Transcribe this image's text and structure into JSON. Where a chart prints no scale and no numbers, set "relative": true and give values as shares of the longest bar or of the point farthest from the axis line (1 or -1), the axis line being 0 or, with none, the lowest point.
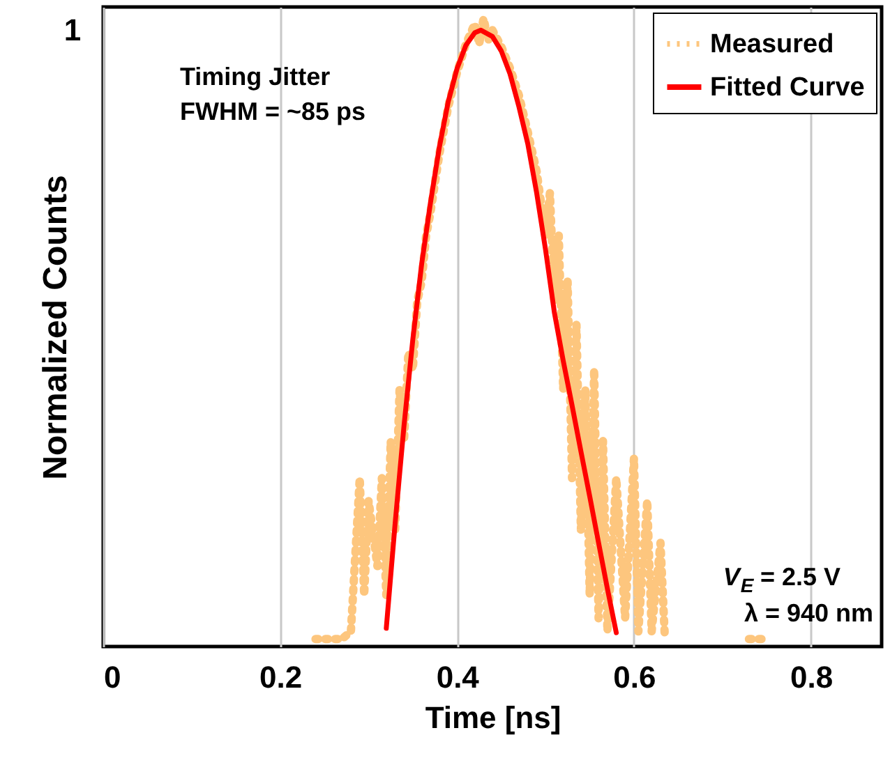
{
  "chart_data": {
    "type": "line",
    "xlabel": "Time [ns]",
    "ylabel": "Normalized Counts",
    "xlim": [
      0,
      0.88
    ],
    "xticks": [
      0,
      0.2,
      0.4,
      0.6,
      0.8
    ],
    "relative": true,
    "grid": "x",
    "legend": "top right",
    "annotations": [
      "1",
      "Timing Jitter",
      "FWHM = ~85 ps",
      "V$_{E}$ = 2.5 V",
      "λ = 940 nm"
    ],
    "series": [
      {
        "name": "Measured",
        "color": "#fdc67e",
        "line_style": "dotted",
        "x": [
          0.24,
          0.27,
          0.28,
          0.29,
          0.295,
          0.3,
          0.31,
          0.315,
          0.32,
          0.325,
          0.33,
          0.335,
          0.34,
          0.345,
          0.35,
          0.355,
          0.36,
          0.365,
          0.37,
          0.38,
          0.39,
          0.4,
          0.41,
          0.42,
          0.425,
          0.43,
          0.435,
          0.44,
          0.45,
          0.46,
          0.47,
          0.48,
          0.49,
          0.5,
          0.505,
          0.51,
          0.515,
          0.52,
          0.525,
          0.53,
          0.535,
          0.54,
          0.545,
          0.55,
          0.555,
          0.56,
          0.565,
          0.57,
          0.58,
          0.59,
          0.6,
          0.605,
          0.615,
          0.62,
          0.63,
          0.635,
          0.7,
          0.73,
          0.75
        ],
        "values": [
          0.012,
          0.012,
          0.024,
          0.268,
          0.082,
          0.232,
          0.128,
          0.268,
          0.082,
          0.327,
          0.186,
          0.409,
          0.327,
          0.468,
          0.441,
          0.55,
          0.581,
          0.654,
          0.691,
          0.784,
          0.859,
          0.914,
          0.959,
          0.991,
          0.959,
          1.0,
          0.964,
          0.981,
          0.955,
          0.92,
          0.877,
          0.819,
          0.756,
          0.654,
          0.722,
          0.55,
          0.654,
          0.409,
          0.581,
          0.268,
          0.513,
          0.186,
          0.409,
          0.082,
          0.441,
          0.045,
          0.327,
          0.024,
          0.268,
          0.045,
          0.3,
          0.024,
          0.232,
          0.024,
          0.165,
          0.012,
          null,
          0.012,
          0.012
        ]
      },
      {
        "name": "Fitted Curve",
        "color": "#ff0000",
        "line_style": "solid",
        "x": [
          0.32,
          0.33,
          0.34,
          0.35,
          0.36,
          0.37,
          0.38,
          0.39,
          0.4,
          0.41,
          0.42,
          0.427,
          0.44,
          0.45,
          0.46,
          0.47,
          0.48,
          0.49,
          0.5,
          0.51,
          0.52,
          0.53,
          0.54,
          0.55,
          0.56,
          0.57,
          0.58
        ],
        "values": [
          0.029,
          0.196,
          0.351,
          0.489,
          0.609,
          0.707,
          0.795,
          0.867,
          0.92,
          0.957,
          0.977,
          0.981,
          0.971,
          0.948,
          0.911,
          0.859,
          0.8,
          0.722,
          0.632,
          0.532,
          0.455,
          0.384,
          0.311,
          0.239,
          0.165,
          0.092,
          0.022
        ]
      }
    ]
  }
}
